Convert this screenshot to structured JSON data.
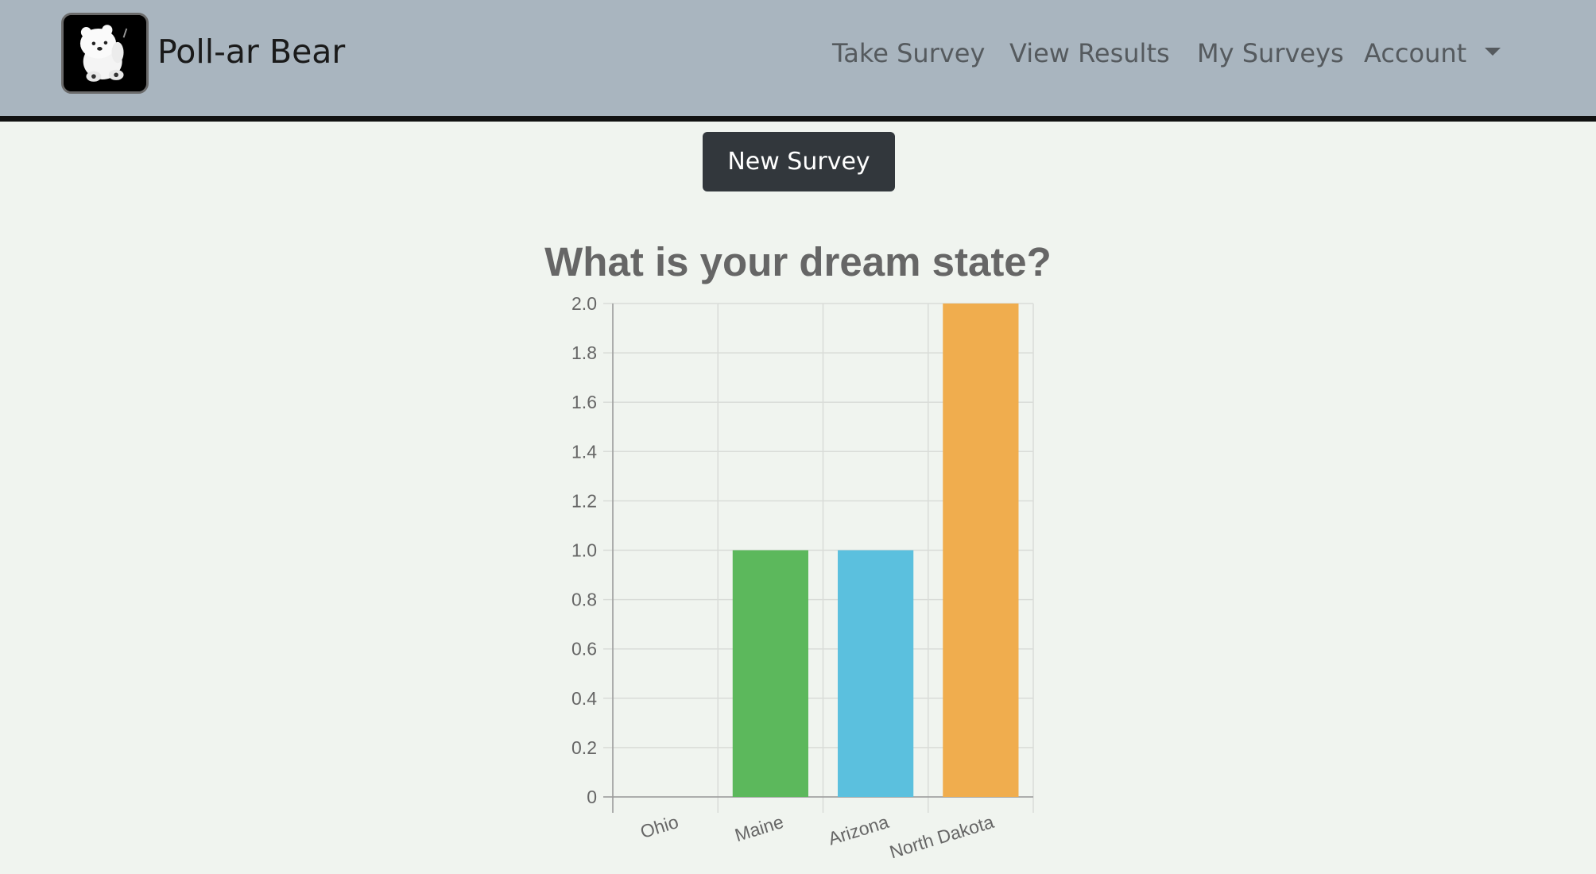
{
  "brand": {
    "name": "Poll-ar Bear",
    "logo_icon": "polar-bear-logo-icon"
  },
  "nav": {
    "take_survey": "Take Survey",
    "view_results": "View Results",
    "my_surveys": "My Surveys",
    "account": "Account",
    "account_icon": "caret-down-icon"
  },
  "actions": {
    "new_survey": "New Survey"
  },
  "colors": {
    "navbar_bg": "#a9b5bf",
    "page_bg": "#f0f4ef",
    "button_bg": "#32373c"
  },
  "chart_data": {
    "type": "bar",
    "title": "What is your dream state?",
    "categories": [
      "Ohio",
      "Maine",
      "Arizona",
      "North Dakota"
    ],
    "values": [
      0,
      1,
      1,
      2
    ],
    "colors": [
      "#5b9bd5",
      "#5cb85c",
      "#5bc0de",
      "#f0ad4e"
    ],
    "xlabel": "",
    "ylabel": "",
    "ylim": [
      0,
      2.0
    ],
    "yticks": [
      "0",
      "0.2",
      "0.4",
      "0.6",
      "0.8",
      "1.0",
      "1.2",
      "1.4",
      "1.6",
      "1.8",
      "2.0"
    ],
    "grid": true,
    "legend": "none"
  }
}
